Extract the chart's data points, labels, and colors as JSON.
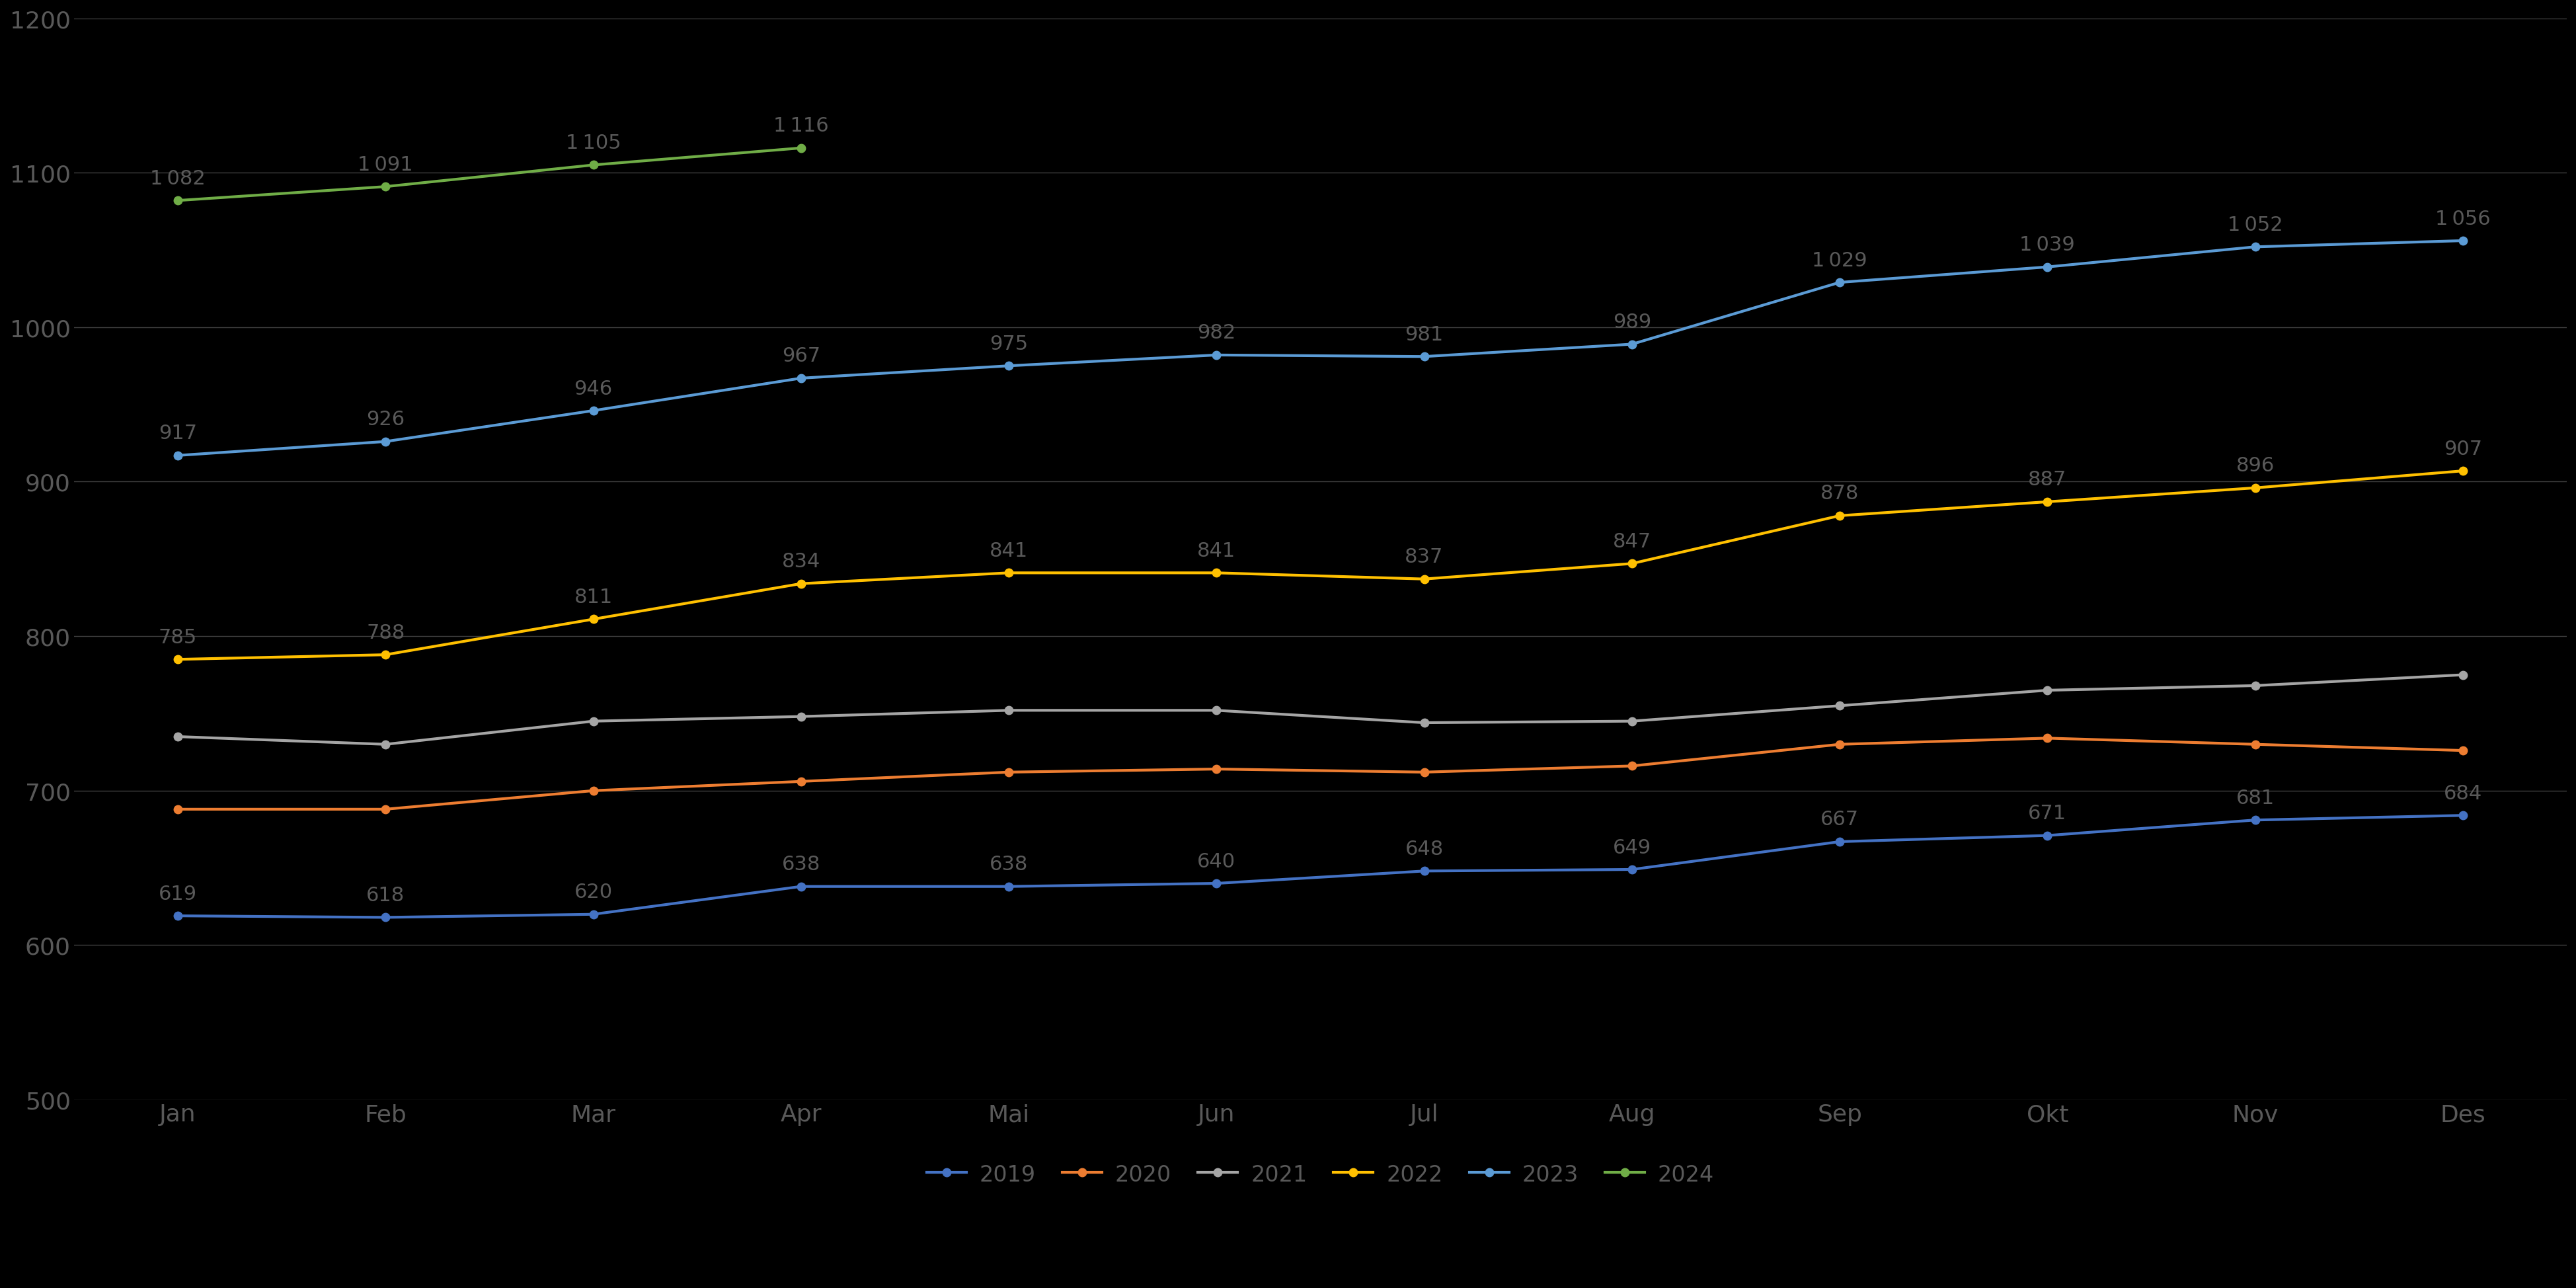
{
  "months": [
    "Jan",
    "Feb",
    "Mar",
    "Apr",
    "Mai",
    "Jun",
    "Jul",
    "Aug",
    "Sep",
    "Okt",
    "Nov",
    "Des"
  ],
  "series_order": [
    "2019",
    "2020",
    "2021",
    "2022",
    "2023",
    "2024"
  ],
  "series": {
    "2019": {
      "values": [
        619,
        618,
        620,
        638,
        638,
        640,
        648,
        649,
        667,
        671,
        681,
        684
      ],
      "color": "#4472C4",
      "label": "2019",
      "show_labels": true
    },
    "2020": {
      "values": [
        688,
        688,
        700,
        706,
        712,
        714,
        712,
        716,
        730,
        734,
        730,
        726
      ],
      "color": "#ED7D31",
      "label": "2020",
      "show_labels": false
    },
    "2021": {
      "values": [
        735,
        730,
        745,
        748,
        752,
        752,
        744,
        745,
        755,
        765,
        768,
        775
      ],
      "color": "#A5A5A5",
      "label": "2021",
      "show_labels": false
    },
    "2022": {
      "values": [
        785,
        788,
        811,
        834,
        841,
        841,
        837,
        847,
        878,
        887,
        896,
        907
      ],
      "color": "#FFC000",
      "label": "2022",
      "show_labels": true
    },
    "2023": {
      "values": [
        917,
        926,
        946,
        967,
        975,
        982,
        981,
        989,
        1029,
        1039,
        1052,
        1056
      ],
      "color": "#5B9BD5",
      "label": "2023",
      "show_labels": true
    },
    "2024": {
      "values": [
        1082,
        1091,
        1105,
        1116,
        null,
        null,
        null,
        null,
        null,
        null,
        null,
        null
      ],
      "color": "#70AD47",
      "label": "2024",
      "show_labels": true
    }
  },
  "ylim": [
    500,
    1200
  ],
  "yticks": [
    500,
    600,
    700,
    800,
    900,
    1000,
    1100,
    1200
  ],
  "background_color": "#000000",
  "text_color": "#595959",
  "label_color": "#595959",
  "grid_color": "#404040",
  "linewidth": 3.0,
  "markersize": 9,
  "label_fontsize": 22,
  "tick_fontsize": 26,
  "legend_fontsize": 24
}
